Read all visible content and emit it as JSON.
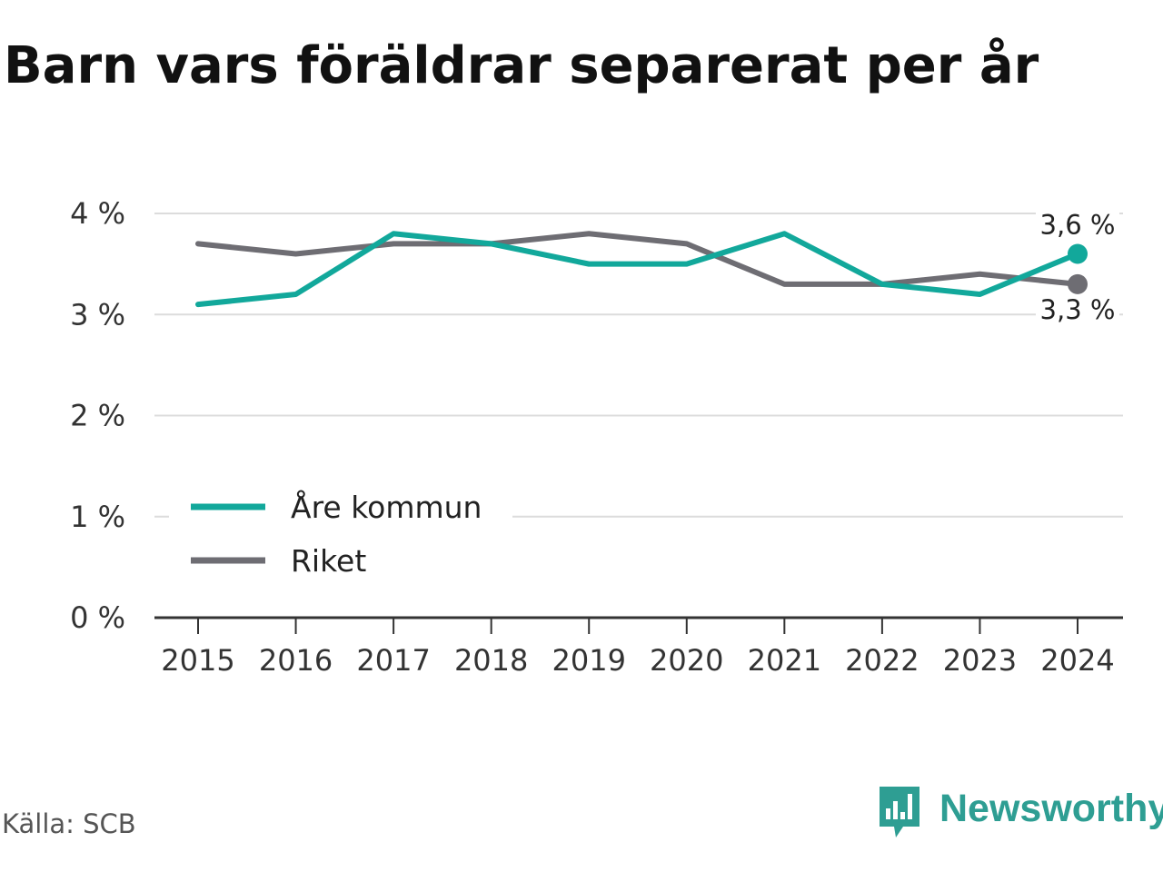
{
  "title": "Barn vars föräldrar separerat per år",
  "source": "Källa: SCB",
  "brand": "Newsworthy",
  "colors": {
    "are": "#12a89b",
    "riket": "#6e6d73",
    "grid": "#dcdcdc",
    "axis": "#333333",
    "brand": "#2e9e93"
  },
  "chart_data": {
    "type": "line",
    "title": "Barn vars föräldrar separerat per år",
    "xlabel": "",
    "ylabel": "",
    "categories": [
      "2015",
      "2016",
      "2017",
      "2018",
      "2019",
      "2020",
      "2021",
      "2022",
      "2023",
      "2024"
    ],
    "y_ticks": [
      "0 %",
      "1 %",
      "2 %",
      "3 %",
      "4 %"
    ],
    "ylim": [
      0,
      4
    ],
    "grid": true,
    "legend_position": "left-lower",
    "series": [
      {
        "name": "Åre kommun",
        "color": "#12a89b",
        "values": [
          3.1,
          3.2,
          3.8,
          3.7,
          3.5,
          3.5,
          3.8,
          3.3,
          3.2,
          3.6
        ],
        "end_label": "3,6 %"
      },
      {
        "name": "Riket",
        "color": "#6e6d73",
        "values": [
          3.7,
          3.6,
          3.7,
          3.7,
          3.8,
          3.7,
          3.3,
          3.3,
          3.4,
          3.3
        ],
        "end_label": "3,3 %"
      }
    ]
  }
}
